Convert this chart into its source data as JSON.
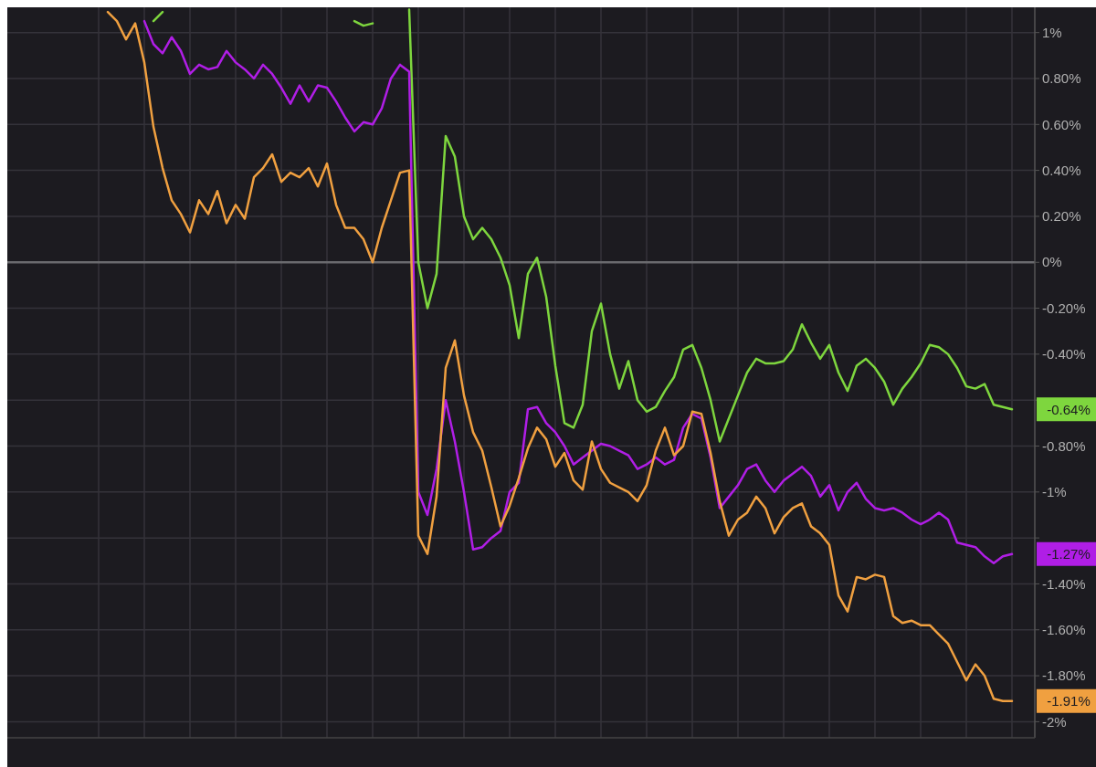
{
  "chart_data": {
    "type": "line",
    "categories": [
      null,
      null,
      null,
      null,
      null,
      null,
      null,
      null,
      null,
      null,
      null,
      null,
      null,
      null,
      null,
      null,
      null,
      null,
      null,
      null,
      null,
      null,
      null,
      null,
      null,
      null,
      null,
      null,
      null,
      null,
      null,
      null,
      null,
      null,
      null,
      null,
      null,
      null,
      null,
      null,
      null,
      null,
      null,
      null,
      null,
      null,
      null,
      null,
      null,
      null,
      null,
      null,
      null,
      null,
      null,
      null,
      null,
      null,
      null,
      null,
      null,
      null,
      null,
      null,
      null,
      null,
      null,
      null,
      null,
      null,
      null,
      null,
      null,
      null,
      null,
      null,
      null,
      null,
      null,
      null,
      null,
      null,
      null,
      null,
      null,
      null,
      null,
      null,
      null,
      null,
      null,
      null,
      null,
      null,
      null,
      null,
      null,
      null,
      null,
      null,
      null
    ],
    "series": [
      {
        "color": "#7ed63e",
        "values": [
          null,
          null,
          null,
          null,
          null,
          null,
          1.05,
          1.09,
          null,
          null,
          null,
          null,
          null,
          null,
          null,
          null,
          null,
          null,
          null,
          null,
          null,
          null,
          null,
          null,
          null,
          null,
          null,
          null,
          1.05,
          1.03,
          1.04,
          null,
          null,
          null,
          1.1,
          0,
          -0.2,
          -0.05,
          0.55,
          0.46,
          0.2,
          0.1,
          0.15,
          0.1,
          0.02,
          -0.1,
          -0.33,
          -0.05,
          0.02,
          -0.15,
          -0.45,
          -0.7,
          -0.72,
          -0.62,
          -0.3,
          -0.18,
          -0.4,
          -0.55,
          -0.43,
          -0.6,
          -0.65,
          -0.63,
          -0.56,
          -0.5,
          -0.38,
          -0.36,
          -0.46,
          -0.6,
          -0.78,
          -0.68,
          -0.58,
          -0.48,
          -0.42,
          -0.44,
          -0.44,
          -0.43,
          -0.38,
          -0.27,
          -0.35,
          -0.42,
          -0.36,
          -0.48,
          -0.56,
          -0.45,
          -0.42,
          -0.46,
          -0.52,
          -0.62,
          -0.55,
          -0.5,
          -0.44,
          -0.36,
          -0.37,
          -0.4,
          -0.46,
          -0.54,
          -0.55,
          -0.53,
          -0.62,
          -0.63,
          -0.64
        ]
      },
      {
        "color": "#b01ee6",
        "values": [
          null,
          null,
          null,
          null,
          null,
          1.05,
          0.95,
          0.91,
          0.98,
          0.92,
          0.82,
          0.86,
          0.84,
          0.85,
          0.92,
          0.87,
          0.84,
          0.8,
          0.86,
          0.82,
          0.76,
          0.69,
          0.77,
          0.7,
          0.77,
          0.76,
          0.7,
          0.63,
          0.57,
          0.61,
          0.6,
          0.67,
          0.8,
          0.86,
          0.83,
          -1.0,
          -1.1,
          -0.9,
          -0.6,
          -0.78,
          -1.0,
          -1.25,
          -1.24,
          -1.2,
          -1.17,
          -1.0,
          -0.96,
          -0.64,
          -0.63,
          -0.7,
          -0.74,
          -0.8,
          -0.88,
          -0.85,
          -0.82,
          -0.79,
          -0.8,
          -0.82,
          -0.84,
          -0.9,
          -0.88,
          -0.85,
          -0.88,
          -0.86,
          -0.72,
          -0.66,
          -0.68,
          -0.85,
          -1.07,
          -1.02,
          -0.97,
          -0.9,
          -0.88,
          -0.95,
          -1.0,
          -0.95,
          -0.92,
          -0.89,
          -0.93,
          -1.02,
          -0.97,
          -1.08,
          -1.0,
          -0.96,
          -1.03,
          -1.07,
          -1.08,
          -1.07,
          -1.09,
          -1.12,
          -1.14,
          -1.12,
          -1.09,
          -1.12,
          -1.22,
          -1.23,
          -1.24,
          -1.28,
          -1.31,
          -1.28,
          -1.27
        ]
      },
      {
        "color": "#f0a040",
        "values": [
          null,
          1.09,
          1.05,
          0.97,
          1.04,
          0.87,
          0.59,
          0.41,
          0.27,
          0.21,
          0.13,
          0.27,
          0.21,
          0.31,
          0.17,
          0.25,
          0.19,
          0.37,
          0.41,
          0.47,
          0.35,
          0.39,
          0.37,
          0.41,
          0.33,
          0.43,
          0.25,
          0.15,
          0.15,
          0.1,
          0,
          0.15,
          0.27,
          0.39,
          0.4,
          -1.19,
          -1.27,
          -1.02,
          -0.46,
          -0.34,
          -0.58,
          -0.74,
          -0.82,
          -0.98,
          -1.15,
          -1.06,
          -0.94,
          -0.81,
          -0.72,
          -0.77,
          -0.89,
          -0.83,
          -0.95,
          -0.99,
          -0.78,
          -0.9,
          -0.96,
          -0.98,
          -1,
          -1.04,
          -0.97,
          -0.82,
          -0.72,
          -0.84,
          -0.8,
          -0.65,
          -0.66,
          -0.83,
          -1.04,
          -1.19,
          -1.12,
          -1.09,
          -1.02,
          -1.07,
          -1.18,
          -1.11,
          -1.07,
          -1.05,
          -1.15,
          -1.18,
          -1.23,
          -1.45,
          -1.52,
          -1.37,
          -1.38,
          -1.36,
          -1.37,
          -1.54,
          -1.57,
          -1.56,
          -1.58,
          -1.58,
          -1.62,
          -1.66,
          -1.74,
          -1.82,
          -1.75,
          -1.8,
          -1.9,
          -1.91,
          -1.91
        ]
      }
    ],
    "ylim": [
      -2.07,
      1.11
    ],
    "yticks": [
      {
        "value": 1,
        "label": "1%"
      },
      {
        "value": 0.8,
        "label": "0.80%"
      },
      {
        "value": 0.6,
        "label": "0.60%"
      },
      {
        "value": 0.4,
        "label": "0.40%"
      },
      {
        "value": 0.2,
        "label": "0.20%"
      },
      {
        "value": 0,
        "label": "0%"
      },
      {
        "value": -0.2,
        "label": "-0.20%"
      },
      {
        "value": -0.4,
        "label": "-0.40%"
      },
      {
        "value": -0.6,
        "label": null
      },
      {
        "value": -0.8,
        "label": "-0.80%"
      },
      {
        "value": -1,
        "label": "-1%"
      },
      {
        "value": -1.2,
        "label": null
      },
      {
        "value": -1.4,
        "label": "-1.40%"
      },
      {
        "value": -1.6,
        "label": "-1.60%"
      },
      {
        "value": -1.8,
        "label": "-1.80%"
      },
      {
        "value": -2,
        "label": "-2%"
      }
    ],
    "ref_lines": [
      {
        "axis": "y",
        "value": 0,
        "color": "#6a6a6e"
      }
    ],
    "annotations": [
      "-0.64%",
      "-1.27%",
      "-1.91%"
    ],
    "grid": true,
    "tick_labels": "y",
    "line_style": "solid",
    "marker": "none"
  }
}
